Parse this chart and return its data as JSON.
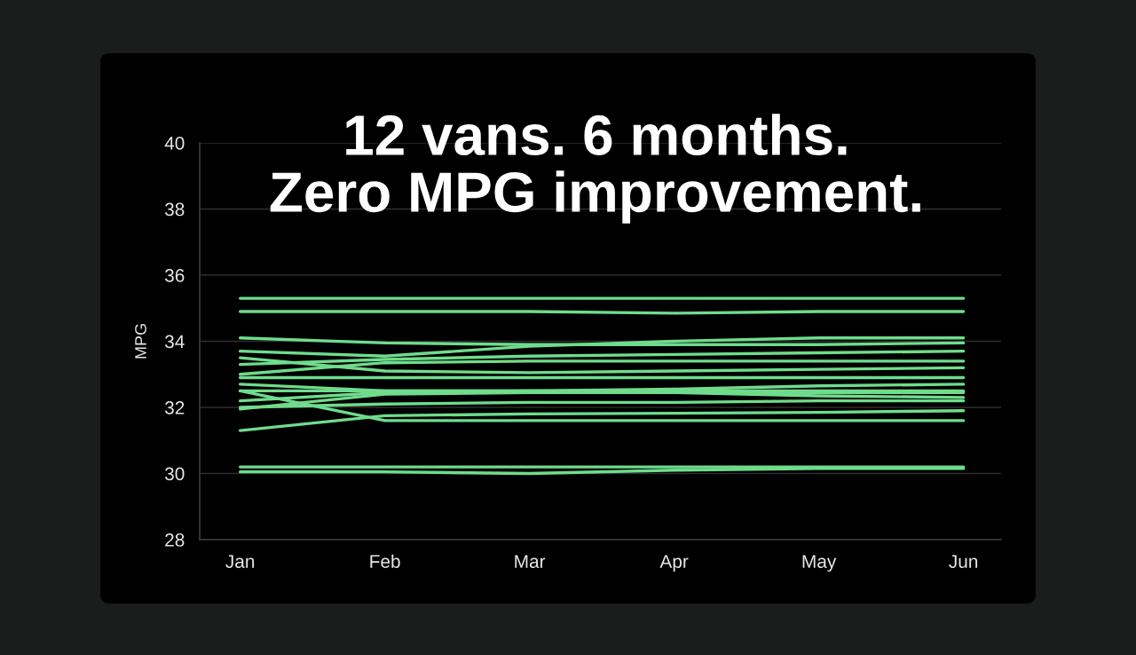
{
  "chart_data": {
    "type": "line",
    "title": "12 vans. 6 months.\nZero MPG improvement.",
    "ylabel": "MPG",
    "categories": [
      "Jan",
      "Feb",
      "Mar",
      "Apr",
      "May",
      "Jun"
    ],
    "ylim": [
      28,
      40
    ],
    "yticks": [
      28,
      30,
      32,
      34,
      36,
      38,
      40
    ],
    "grid": "y",
    "series": [
      {
        "color": "#6fdc8c",
        "values": [
          35.3,
          35.3,
          35.3,
          35.3,
          35.3,
          35.3
        ]
      },
      {
        "color": "#6fdc8c",
        "values": [
          34.9,
          34.9,
          34.9,
          34.85,
          34.9,
          34.9
        ]
      },
      {
        "color": "#6fdc8c",
        "values": [
          34.1,
          33.95,
          33.9,
          33.9,
          33.9,
          33.95
        ]
      },
      {
        "color": "#6fdc8c",
        "values": [
          33.7,
          33.55,
          33.85,
          34.0,
          34.1,
          34.1
        ]
      },
      {
        "color": "#6fdc8c",
        "values": [
          33.5,
          33.1,
          33.05,
          33.1,
          33.15,
          33.2
        ]
      },
      {
        "color": "#6fdc8c",
        "values": [
          33.3,
          33.45,
          33.55,
          33.6,
          33.65,
          33.7
        ]
      },
      {
        "color": "#6fdc8c",
        "values": [
          33.0,
          33.35,
          33.4,
          33.4,
          33.4,
          33.4
        ]
      },
      {
        "color": "#6fdc8c",
        "values": [
          32.9,
          32.9,
          32.9,
          32.9,
          32.9,
          32.9
        ]
      },
      {
        "color": "#6fdc8c",
        "values": [
          32.7,
          32.5,
          32.5,
          32.55,
          32.65,
          32.7
        ]
      },
      {
        "color": "#6fdc8c",
        "values": [
          32.5,
          32.5,
          32.5,
          32.45,
          32.35,
          32.3
        ]
      },
      {
        "color": "#6fdc8c",
        "values": [
          32.5,
          31.6,
          31.6,
          31.6,
          31.6,
          31.6
        ]
      },
      {
        "color": "#6fdc8c",
        "values": [
          32.2,
          32.45,
          32.5,
          32.5,
          32.5,
          32.5
        ]
      },
      {
        "color": "#6fdc8c",
        "values": [
          32.0,
          32.1,
          32.15,
          32.15,
          32.2,
          32.2
        ]
      },
      {
        "color": "#6fdc8c",
        "values": [
          31.95,
          32.4,
          32.45,
          32.45,
          32.45,
          32.45
        ]
      },
      {
        "color": "#6fdc8c",
        "values": [
          31.3,
          31.75,
          31.8,
          31.82,
          31.85,
          31.9
        ]
      },
      {
        "color": "#6fdc8c",
        "values": [
          30.2,
          30.2,
          30.2,
          30.2,
          30.2,
          30.2
        ]
      },
      {
        "color": "#6fdc8c",
        "values": [
          30.05,
          30.05,
          30.0,
          30.1,
          30.15,
          30.15
        ]
      }
    ]
  }
}
